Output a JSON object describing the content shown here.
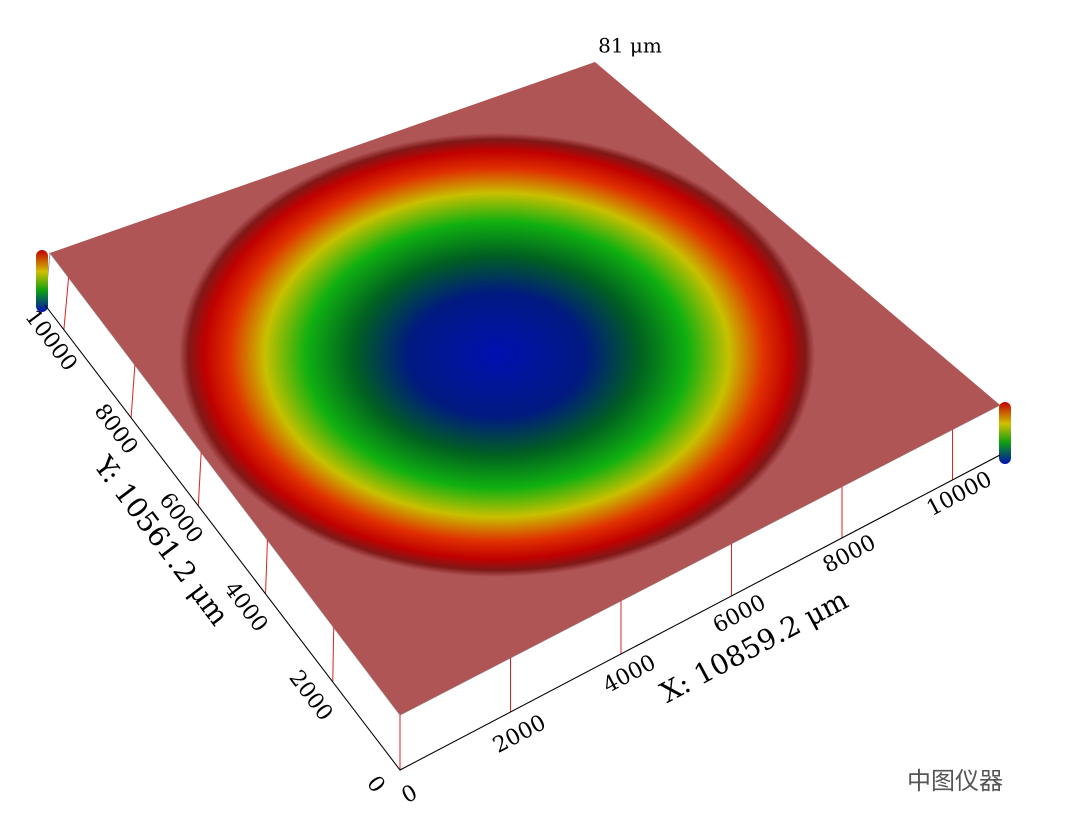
{
  "chart_data": {
    "type": "surface3d",
    "z_label": "81 μm",
    "x_label": "X: 10859.2 μm",
    "y_label": "Y: 10561.2 μm",
    "xlim": [
      0,
      10859.2
    ],
    "xticks": [
      0,
      2000,
      4000,
      6000,
      8000,
      10000
    ],
    "ylim": [
      0,
      10561.2
    ],
    "yticks": [
      0,
      2000,
      4000,
      6000,
      8000,
      10000
    ],
    "watermark": "中图仪器"
  }
}
